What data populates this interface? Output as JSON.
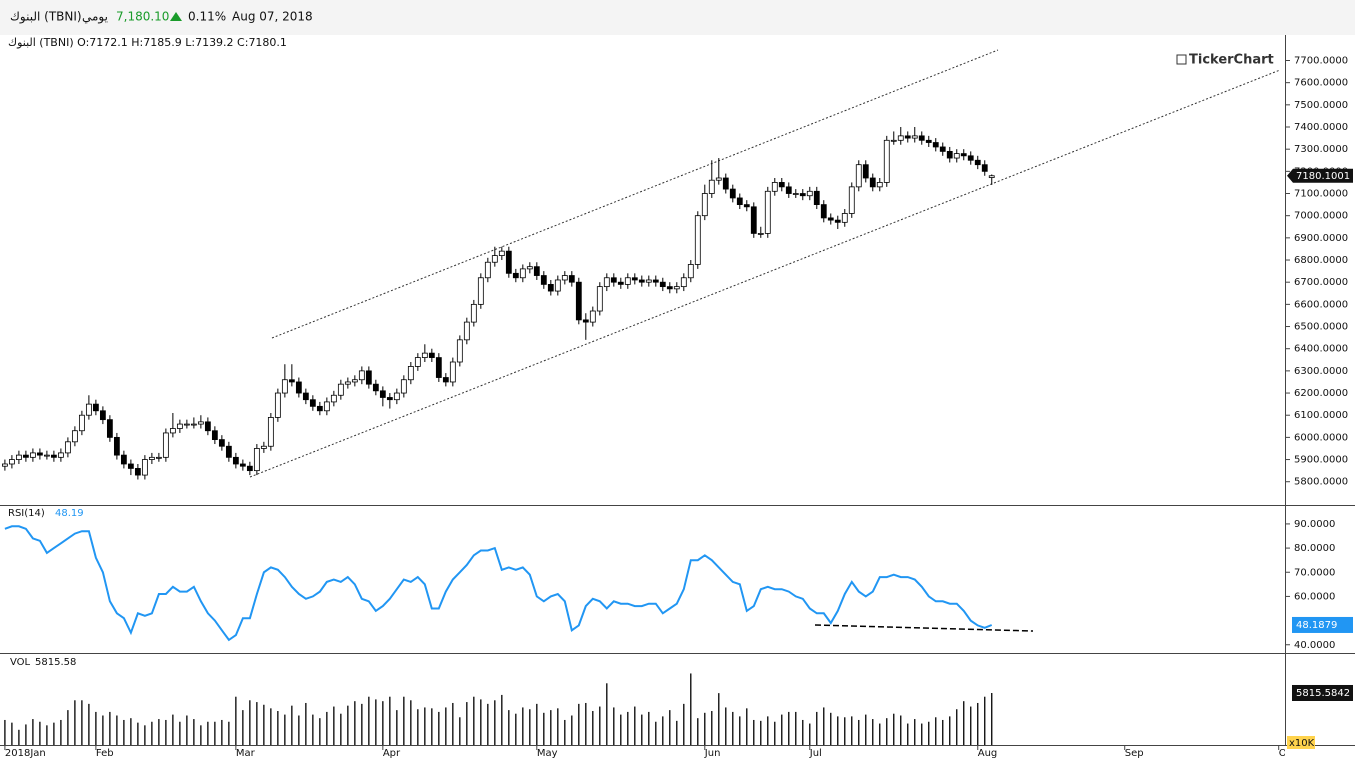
{
  "header": {
    "name": "البنوك (TBNI)",
    "period": "يومي",
    "price": "7,180.10",
    "change": "0.11%",
    "date": "Aug 07, 2018"
  },
  "chart_data": [
    {
      "type": "candlestick",
      "title": "البنوك (TBNI) O:7172.1 H:7185.9 L:7139.2 C:7180.1",
      "watermark": "TickerChart",
      "last_price_label": "7180.1001",
      "ylim": [
        5695,
        7815
      ],
      "yticks": [
        {
          "value": 5800,
          "label": "5800.0000"
        },
        {
          "value": 5900,
          "label": "5900.0000"
        },
        {
          "value": 6000,
          "label": "6000.0000"
        },
        {
          "value": 6100,
          "label": "6100.0000"
        },
        {
          "value": 6200,
          "label": "6200.0000"
        },
        {
          "value": 6300,
          "label": "6300.0000"
        },
        {
          "value": 6400,
          "label": "6400.0000"
        },
        {
          "value": 6500,
          "label": "6500.0000"
        },
        {
          "value": 6600,
          "label": "6600.0000"
        },
        {
          "value": 6700,
          "label": "6700.0000"
        },
        {
          "value": 6800,
          "label": "6800.0000"
        },
        {
          "value": 6900,
          "label": "6900.0000"
        },
        {
          "value": 7000,
          "label": "7000.0000"
        },
        {
          "value": 7100,
          "label": "7100.0000"
        },
        {
          "value": 7200,
          "label": "7200.0000"
        },
        {
          "value": 7300,
          "label": "7300.0000"
        },
        {
          "value": 7400,
          "label": "7400.0000"
        },
        {
          "value": 7500,
          "label": "7500.0000"
        },
        {
          "value": 7600,
          "label": "7600.0000"
        },
        {
          "value": 7700,
          "label": "7700.0000"
        }
      ],
      "up_color": "#ffffff",
      "down_color": "#000000",
      "candles": [
        [
          5870,
          5900,
          5850,
          5880
        ],
        [
          5880,
          5920,
          5860,
          5900
        ],
        [
          5900,
          5940,
          5880,
          5920
        ],
        [
          5920,
          5940,
          5890,
          5910
        ],
        [
          5910,
          5950,
          5890,
          5930
        ],
        [
          5930,
          5950,
          5900,
          5920
        ],
        [
          5920,
          5940,
          5900,
          5920
        ],
        [
          5920,
          5940,
          5890,
          5910
        ],
        [
          5910,
          5950,
          5890,
          5930
        ],
        [
          5930,
          6000,
          5910,
          5980
        ],
        [
          5980,
          6050,
          5960,
          6030
        ],
        [
          6030,
          6120,
          6010,
          6100
        ],
        [
          6100,
          6190,
          6080,
          6150
        ],
        [
          6150,
          6170,
          6100,
          6120
        ],
        [
          6120,
          6140,
          6060,
          6080
        ],
        [
          6080,
          6100,
          5980,
          6000
        ],
        [
          6000,
          6020,
          5900,
          5920
        ],
        [
          5920,
          5940,
          5860,
          5880
        ],
        [
          5880,
          5900,
          5830,
          5860
        ],
        [
          5860,
          5880,
          5810,
          5830
        ],
        [
          5830,
          5920,
          5810,
          5900
        ],
        [
          5900,
          5930,
          5880,
          5910
        ],
        [
          5910,
          5930,
          5890,
          5910
        ],
        [
          5910,
          6040,
          5890,
          6020
        ],
        [
          6020,
          6110,
          6000,
          6040
        ],
        [
          6040,
          6080,
          6020,
          6060
        ],
        [
          6060,
          6080,
          6040,
          6060
        ],
        [
          6060,
          6090,
          6040,
          6060
        ],
        [
          6060,
          6100,
          6040,
          6070
        ],
        [
          6070,
          6090,
          6010,
          6030
        ],
        [
          6030,
          6050,
          5970,
          5990
        ],
        [
          5990,
          6010,
          5940,
          5960
        ],
        [
          5960,
          5980,
          5890,
          5910
        ],
        [
          5910,
          5930,
          5860,
          5880
        ],
        [
          5880,
          5900,
          5850,
          5870
        ],
        [
          5870,
          5890,
          5830,
          5850
        ],
        [
          5850,
          5970,
          5830,
          5950
        ],
        [
          5950,
          5980,
          5930,
          5960
        ],
        [
          5960,
          6110,
          5940,
          6090
        ],
        [
          6090,
          6220,
          6070,
          6200
        ],
        [
          6200,
          6330,
          6180,
          6260
        ],
        [
          6260,
          6330,
          6230,
          6250
        ],
        [
          6250,
          6270,
          6180,
          6200
        ],
        [
          6200,
          6220,
          6150,
          6170
        ],
        [
          6170,
          6190,
          6120,
          6140
        ],
        [
          6140,
          6160,
          6100,
          6120
        ],
        [
          6120,
          6180,
          6100,
          6160
        ],
        [
          6160,
          6210,
          6140,
          6190
        ],
        [
          6190,
          6260,
          6170,
          6240
        ],
        [
          6240,
          6270,
          6220,
          6250
        ],
        [
          6250,
          6280,
          6230,
          6260
        ],
        [
          6260,
          6320,
          6240,
          6300
        ],
        [
          6300,
          6320,
          6220,
          6240
        ],
        [
          6240,
          6260,
          6190,
          6210
        ],
        [
          6210,
          6230,
          6140,
          6180
        ],
        [
          6180,
          6200,
          6130,
          6170
        ],
        [
          6170,
          6220,
          6150,
          6200
        ],
        [
          6200,
          6280,
          6180,
          6260
        ],
        [
          6260,
          6340,
          6240,
          6320
        ],
        [
          6320,
          6380,
          6300,
          6360
        ],
        [
          6360,
          6420,
          6340,
          6380
        ],
        [
          6380,
          6400,
          6340,
          6360
        ],
        [
          6360,
          6380,
          6250,
          6270
        ],
        [
          6270,
          6290,
          6230,
          6250
        ],
        [
          6250,
          6360,
          6230,
          6340
        ],
        [
          6340,
          6460,
          6320,
          6440
        ],
        [
          6440,
          6540,
          6420,
          6520
        ],
        [
          6520,
          6620,
          6500,
          6600
        ],
        [
          6600,
          6740,
          6580,
          6720
        ],
        [
          6720,
          6810,
          6700,
          6790
        ],
        [
          6790,
          6860,
          6770,
          6820
        ],
        [
          6820,
          6860,
          6800,
          6840
        ],
        [
          6840,
          6860,
          6720,
          6740
        ],
        [
          6740,
          6760,
          6700,
          6720
        ],
        [
          6720,
          6780,
          6700,
          6760
        ],
        [
          6760,
          6790,
          6740,
          6770
        ],
        [
          6770,
          6790,
          6710,
          6730
        ],
        [
          6730,
          6750,
          6670,
          6690
        ],
        [
          6690,
          6710,
          6640,
          6660
        ],
        [
          6660,
          6730,
          6640,
          6710
        ],
        [
          6710,
          6750,
          6690,
          6730
        ],
        [
          6730,
          6750,
          6680,
          6700
        ],
        [
          6700,
          6720,
          6510,
          6530
        ],
        [
          6530,
          6560,
          6440,
          6520
        ],
        [
          6520,
          6590,
          6500,
          6570
        ],
        [
          6570,
          6700,
          6550,
          6680
        ],
        [
          6680,
          6740,
          6660,
          6720
        ],
        [
          6720,
          6740,
          6680,
          6700
        ],
        [
          6700,
          6720,
          6670,
          6690
        ],
        [
          6690,
          6740,
          6670,
          6720
        ],
        [
          6720,
          6740,
          6690,
          6710
        ],
        [
          6710,
          6730,
          6680,
          6700
        ],
        [
          6700,
          6730,
          6680,
          6710
        ],
        [
          6710,
          6730,
          6680,
          6700
        ],
        [
          6700,
          6720,
          6660,
          6680
        ],
        [
          6680,
          6700,
          6650,
          6670
        ],
        [
          6670,
          6700,
          6650,
          6680
        ],
        [
          6680,
          6740,
          6660,
          6720
        ],
        [
          6720,
          6800,
          6700,
          6780
        ],
        [
          6780,
          7020,
          6760,
          7000
        ],
        [
          7000,
          7140,
          6980,
          7100
        ],
        [
          7100,
          7250,
          7080,
          7160
        ],
        [
          7160,
          7260,
          7140,
          7170
        ],
        [
          7170,
          7190,
          7100,
          7120
        ],
        [
          7120,
          7140,
          7060,
          7080
        ],
        [
          7080,
          7100,
          7030,
          7050
        ],
        [
          7050,
          7070,
          7020,
          7040
        ],
        [
          7040,
          7060,
          6900,
          6920
        ],
        [
          6920,
          6950,
          6900,
          6920
        ],
        [
          6920,
          7130,
          6900,
          7110
        ],
        [
          7110,
          7170,
          7090,
          7150
        ],
        [
          7150,
          7170,
          7110,
          7130
        ],
        [
          7130,
          7150,
          7080,
          7100
        ],
        [
          7100,
          7120,
          7080,
          7100
        ],
        [
          7100,
          7120,
          7070,
          7090
        ],
        [
          7090,
          7130,
          7070,
          7110
        ],
        [
          7110,
          7130,
          7030,
          7050
        ],
        [
          7050,
          7070,
          6970,
          6990
        ],
        [
          6990,
          7010,
          6960,
          6980
        ],
        [
          6980,
          7000,
          6940,
          6970
        ],
        [
          6970,
          7030,
          6950,
          7010
        ],
        [
          7010,
          7150,
          6990,
          7130
        ],
        [
          7130,
          7250,
          7110,
          7230
        ],
        [
          7230,
          7250,
          7150,
          7170
        ],
        [
          7170,
          7190,
          7110,
          7130
        ],
        [
          7130,
          7170,
          7110,
          7150
        ],
        [
          7150,
          7360,
          7130,
          7340
        ],
        [
          7340,
          7380,
          7320,
          7340
        ],
        [
          7340,
          7400,
          7320,
          7360
        ],
        [
          7360,
          7380,
          7330,
          7350
        ],
        [
          7350,
          7400,
          7330,
          7360
        ],
        [
          7360,
          7380,
          7320,
          7340
        ],
        [
          7340,
          7360,
          7310,
          7330
        ],
        [
          7330,
          7350,
          7290,
          7310
        ],
        [
          7310,
          7330,
          7270,
          7290
        ],
        [
          7290,
          7310,
          7240,
          7260
        ],
        [
          7260,
          7300,
          7240,
          7280
        ],
        [
          7280,
          7300,
          7250,
          7270
        ],
        [
          7270,
          7290,
          7230,
          7250
        ],
        [
          7250,
          7270,
          7210,
          7230
        ],
        [
          7230,
          7250,
          7180,
          7200
        ],
        [
          7172.1,
          7185.9,
          7139.2,
          7180.1
        ]
      ]
    },
    {
      "type": "line",
      "title": "RSI(14)",
      "value_header": "48.19",
      "color": "#2196f3",
      "ylim": [
        37,
        97
      ],
      "yticks": [
        {
          "value": 40,
          "label": "40.0000"
        },
        {
          "value": 60,
          "label": "60.0000"
        },
        {
          "value": 70,
          "label": "70.0000"
        },
        {
          "value": 80,
          "label": "80.0000"
        },
        {
          "value": 90,
          "label": "90.0000"
        }
      ],
      "values": [
        88,
        89,
        89,
        88,
        84,
        83,
        78,
        80,
        82,
        84,
        86,
        87,
        87,
        76,
        70,
        58,
        53,
        51,
        45,
        53,
        52,
        53,
        61,
        61,
        64,
        62,
        62,
        64,
        58,
        53,
        50,
        46,
        42,
        44,
        51,
        51,
        61,
        70,
        72,
        71,
        68,
        64,
        61,
        59,
        60,
        62,
        66,
        67,
        66,
        68,
        65,
        59,
        58,
        54,
        56,
        59,
        63,
        67,
        66,
        68,
        65,
        55,
        55,
        62,
        67,
        70,
        73,
        77,
        79,
        79,
        80,
        71,
        72,
        71,
        72,
        69,
        60,
        58,
        60,
        61,
        58,
        46,
        48,
        56,
        59,
        58,
        55,
        58,
        57,
        57,
        56,
        56,
        57,
        57,
        53,
        55,
        57,
        63,
        75,
        75,
        77,
        75,
        72,
        69,
        66,
        65,
        54,
        56,
        63,
        64,
        63,
        63,
        62,
        60,
        59,
        55,
        53,
        53,
        49,
        54,
        61,
        66,
        62,
        60,
        62,
        68,
        68,
        69,
        68,
        68,
        67,
        64,
        60,
        58,
        58,
        57,
        57,
        54,
        50,
        48,
        47,
        48.1879
      ]
    },
    {
      "type": "bar",
      "title": "VOL",
      "value_header": "5815.58",
      "unit": "x10K",
      "color": "#000000",
      "ylim": [
        0,
        9840
      ],
      "xlim": [
        -0.7,
        182.9
      ],
      "xticks": [
        {
          "value": 0,
          "label": "2018Jan"
        },
        {
          "value": 13,
          "label": "Feb"
        },
        {
          "value": 33,
          "label": "Mar"
        },
        {
          "value": 54,
          "label": "Apr"
        },
        {
          "value": 76,
          "label": "May"
        },
        {
          "value": 100,
          "label": "Jun"
        },
        {
          "value": 115,
          "label": "Jul"
        },
        {
          "value": 139,
          "label": "Aug"
        },
        {
          "value": 160,
          "label": "Sep"
        },
        {
          "value": 182,
          "label": "Oct"
        }
      ],
      "values": [
        2800,
        2500,
        1700,
        2300,
        2900,
        2600,
        2200,
        2500,
        2800,
        3900,
        5000,
        5000,
        4600,
        3700,
        3300,
        3700,
        3300,
        2800,
        3000,
        2500,
        2200,
        2600,
        2900,
        2800,
        3400,
        2600,
        3300,
        2900,
        2200,
        2600,
        2600,
        2800,
        2600,
        5400,
        3900,
        5000,
        4800,
        4500,
        4100,
        3800,
        3400,
        4400,
        3300,
        4700,
        3400,
        3000,
        3700,
        4300,
        3500,
        4400,
        4900,
        4600,
        5400,
        5100,
        4900,
        5400,
        3900,
        5400,
        5000,
        4000,
        4200,
        4100,
        3700,
        4200,
        4700,
        3100,
        4800,
        5400,
        5100,
        4600,
        5000,
        5600,
        3900,
        3500,
        4200,
        4000,
        4600,
        3600,
        3900,
        4100,
        2800,
        3300,
        4600,
        4700,
        3800,
        4300,
        6900,
        4200,
        3400,
        3700,
        4300,
        3400,
        3700,
        2600,
        3200,
        3900,
        2700,
        4600,
        8000,
        3000,
        3600,
        3800,
        5800,
        4200,
        3700,
        3200,
        4100,
        2800,
        2700,
        3200,
        2600,
        3400,
        3700,
        3700,
        2800,
        2400,
        3700,
        4200,
        3600,
        3200,
        3100,
        3200,
        2800,
        3400,
        2900,
        2400,
        3000,
        3500,
        3300,
        2400,
        2900,
        2400,
        2600,
        3100,
        2800,
        3200,
        4000,
        4900,
        4300,
        4700,
        5400,
        5815.5842
      ]
    }
  ]
}
